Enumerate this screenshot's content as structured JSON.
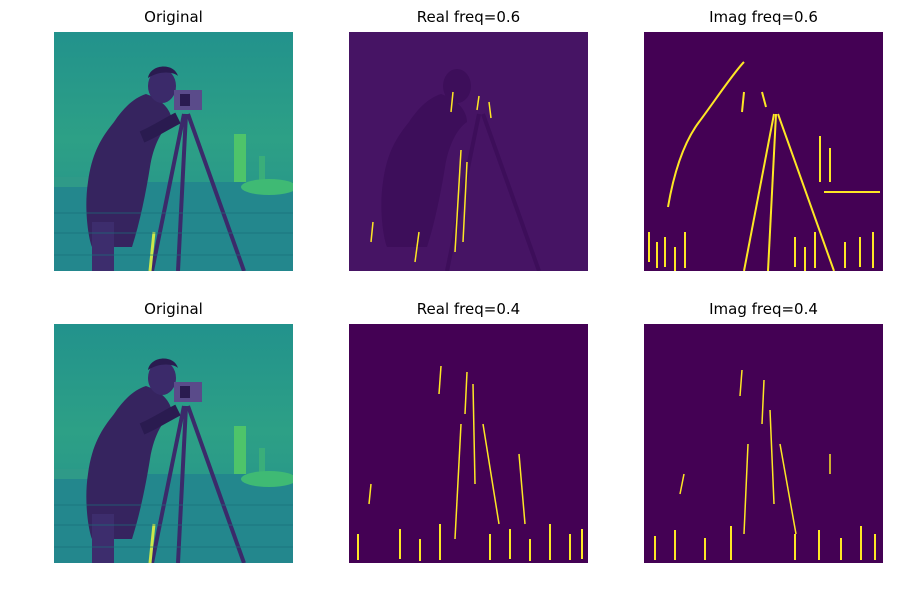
{
  "colormap": {
    "low": "#440154",
    "mid": "#21918c",
    "high": "#fde725"
  },
  "panels": [
    {
      "title": "Original",
      "kind": "original"
    },
    {
      "title": "Real freq=0.6",
      "kind": "real-0.6"
    },
    {
      "title": "Imag freq=0.6",
      "kind": "imag-0.6"
    },
    {
      "title": "Original",
      "kind": "original"
    },
    {
      "title": "Real freq=0.4",
      "kind": "real-0.4"
    },
    {
      "title": "Imag freq=0.4",
      "kind": "imag-0.4"
    }
  ]
}
